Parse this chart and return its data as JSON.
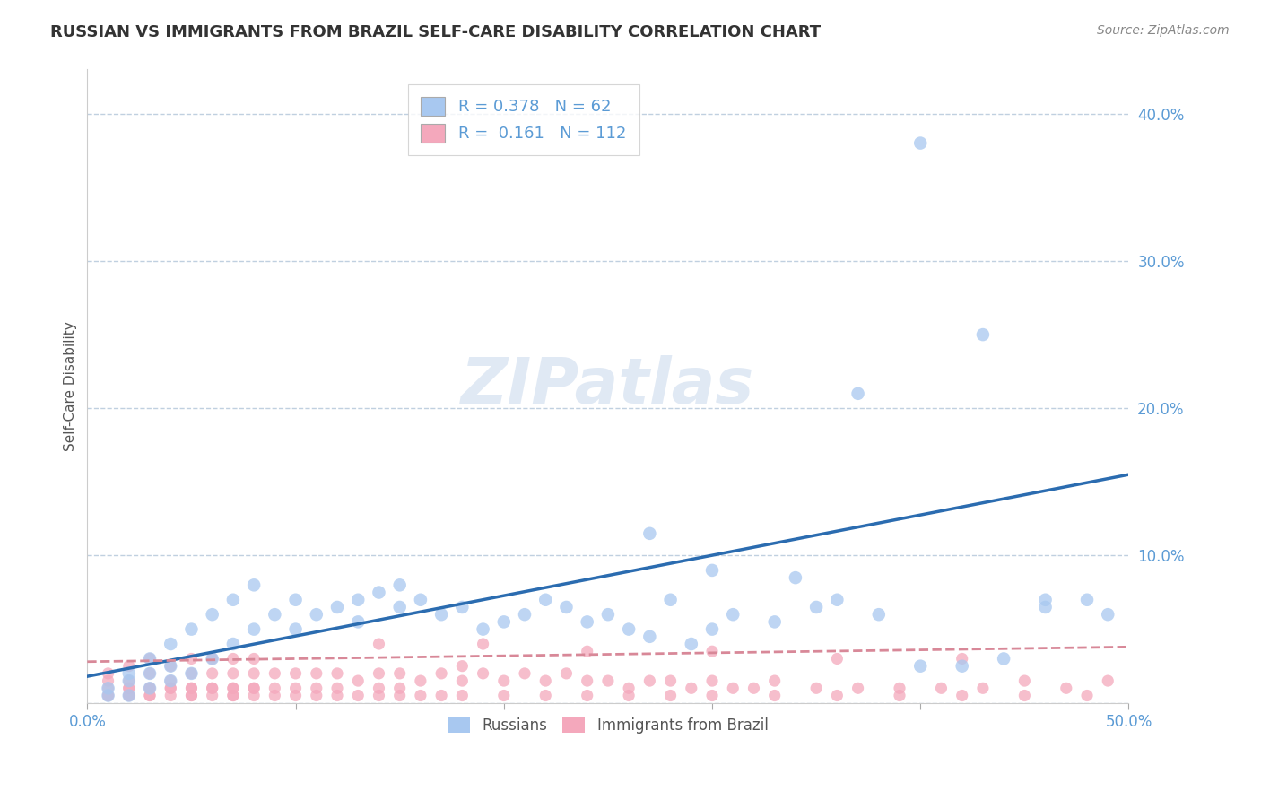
{
  "title": "RUSSIAN VS IMMIGRANTS FROM BRAZIL SELF-CARE DISABILITY CORRELATION CHART",
  "source": "Source: ZipAtlas.com",
  "ylabel": "Self-Care Disability",
  "xlim": [
    0.0,
    0.5
  ],
  "ylim": [
    0.0,
    0.43
  ],
  "yticks": [
    0.0,
    0.1,
    0.2,
    0.3,
    0.4
  ],
  "ytick_labels": [
    "",
    "10.0%",
    "20.0%",
    "30.0%",
    "40.0%"
  ],
  "xticks": [
    0.0,
    0.1,
    0.2,
    0.3,
    0.4,
    0.5
  ],
  "legend_russian_R": "0.378",
  "legend_russian_N": "62",
  "legend_brazil_R": "0.161",
  "legend_brazil_N": "112",
  "russian_color": "#a8c8f0",
  "brazil_color": "#f4a8bc",
  "trendline_russian_color": "#2b6cb0",
  "trendline_brazil_color": "#d88898",
  "background_color": "#ffffff",
  "grid_color": "#c0d0e0",
  "watermark": "ZIPatlas",
  "rus_x": [
    0.01,
    0.01,
    0.02,
    0.02,
    0.02,
    0.03,
    0.03,
    0.03,
    0.04,
    0.04,
    0.04,
    0.05,
    0.05,
    0.06,
    0.06,
    0.07,
    0.07,
    0.08,
    0.08,
    0.09,
    0.1,
    0.1,
    0.11,
    0.12,
    0.13,
    0.13,
    0.14,
    0.15,
    0.15,
    0.16,
    0.17,
    0.18,
    0.19,
    0.2,
    0.21,
    0.22,
    0.23,
    0.24,
    0.25,
    0.26,
    0.27,
    0.28,
    0.29,
    0.3,
    0.31,
    0.33,
    0.35,
    0.36,
    0.38,
    0.4,
    0.42,
    0.44,
    0.46,
    0.48,
    0.27,
    0.3,
    0.34,
    0.37,
    0.4,
    0.43,
    0.46,
    0.49
  ],
  "rus_y": [
    0.005,
    0.01,
    0.005,
    0.015,
    0.02,
    0.01,
    0.02,
    0.03,
    0.015,
    0.025,
    0.04,
    0.02,
    0.05,
    0.03,
    0.06,
    0.04,
    0.07,
    0.05,
    0.08,
    0.06,
    0.05,
    0.07,
    0.06,
    0.065,
    0.07,
    0.055,
    0.075,
    0.065,
    0.08,
    0.07,
    0.06,
    0.065,
    0.05,
    0.055,
    0.06,
    0.07,
    0.065,
    0.055,
    0.06,
    0.05,
    0.045,
    0.07,
    0.04,
    0.05,
    0.06,
    0.055,
    0.065,
    0.07,
    0.06,
    0.025,
    0.025,
    0.03,
    0.065,
    0.07,
    0.115,
    0.09,
    0.085,
    0.21,
    0.38,
    0.25,
    0.07,
    0.06
  ],
  "bra_x": [
    0.01,
    0.01,
    0.01,
    0.02,
    0.02,
    0.02,
    0.02,
    0.03,
    0.03,
    0.03,
    0.03,
    0.04,
    0.04,
    0.04,
    0.05,
    0.05,
    0.05,
    0.05,
    0.06,
    0.06,
    0.06,
    0.07,
    0.07,
    0.07,
    0.07,
    0.08,
    0.08,
    0.08,
    0.09,
    0.09,
    0.1,
    0.1,
    0.11,
    0.11,
    0.12,
    0.12,
    0.13,
    0.14,
    0.14,
    0.15,
    0.15,
    0.16,
    0.17,
    0.18,
    0.18,
    0.19,
    0.2,
    0.21,
    0.22,
    0.23,
    0.24,
    0.25,
    0.26,
    0.27,
    0.28,
    0.29,
    0.3,
    0.31,
    0.32,
    0.33,
    0.35,
    0.37,
    0.39,
    0.41,
    0.43,
    0.45,
    0.47,
    0.49,
    0.01,
    0.01,
    0.02,
    0.02,
    0.03,
    0.03,
    0.04,
    0.04,
    0.05,
    0.05,
    0.06,
    0.06,
    0.07,
    0.07,
    0.08,
    0.08,
    0.09,
    0.1,
    0.11,
    0.12,
    0.13,
    0.14,
    0.15,
    0.16,
    0.17,
    0.18,
    0.2,
    0.22,
    0.24,
    0.26,
    0.28,
    0.3,
    0.33,
    0.36,
    0.39,
    0.42,
    0.45,
    0.48,
    0.14,
    0.19,
    0.24,
    0.3,
    0.36,
    0.42
  ],
  "bra_y": [
    0.005,
    0.01,
    0.02,
    0.005,
    0.01,
    0.015,
    0.025,
    0.005,
    0.01,
    0.02,
    0.03,
    0.01,
    0.015,
    0.025,
    0.005,
    0.01,
    0.02,
    0.03,
    0.01,
    0.02,
    0.03,
    0.005,
    0.01,
    0.02,
    0.03,
    0.01,
    0.02,
    0.03,
    0.01,
    0.02,
    0.01,
    0.02,
    0.01,
    0.02,
    0.01,
    0.02,
    0.015,
    0.01,
    0.02,
    0.01,
    0.02,
    0.015,
    0.02,
    0.015,
    0.025,
    0.02,
    0.015,
    0.02,
    0.015,
    0.02,
    0.015,
    0.015,
    0.01,
    0.015,
    0.015,
    0.01,
    0.015,
    0.01,
    0.01,
    0.015,
    0.01,
    0.01,
    0.01,
    0.01,
    0.01,
    0.015,
    0.01,
    0.015,
    0.005,
    0.015,
    0.005,
    0.01,
    0.005,
    0.01,
    0.005,
    0.01,
    0.005,
    0.01,
    0.005,
    0.01,
    0.005,
    0.01,
    0.005,
    0.01,
    0.005,
    0.005,
    0.005,
    0.005,
    0.005,
    0.005,
    0.005,
    0.005,
    0.005,
    0.005,
    0.005,
    0.005,
    0.005,
    0.005,
    0.005,
    0.005,
    0.005,
    0.005,
    0.005,
    0.005,
    0.005,
    0.005,
    0.04,
    0.04,
    0.035,
    0.035,
    0.03,
    0.03
  ]
}
